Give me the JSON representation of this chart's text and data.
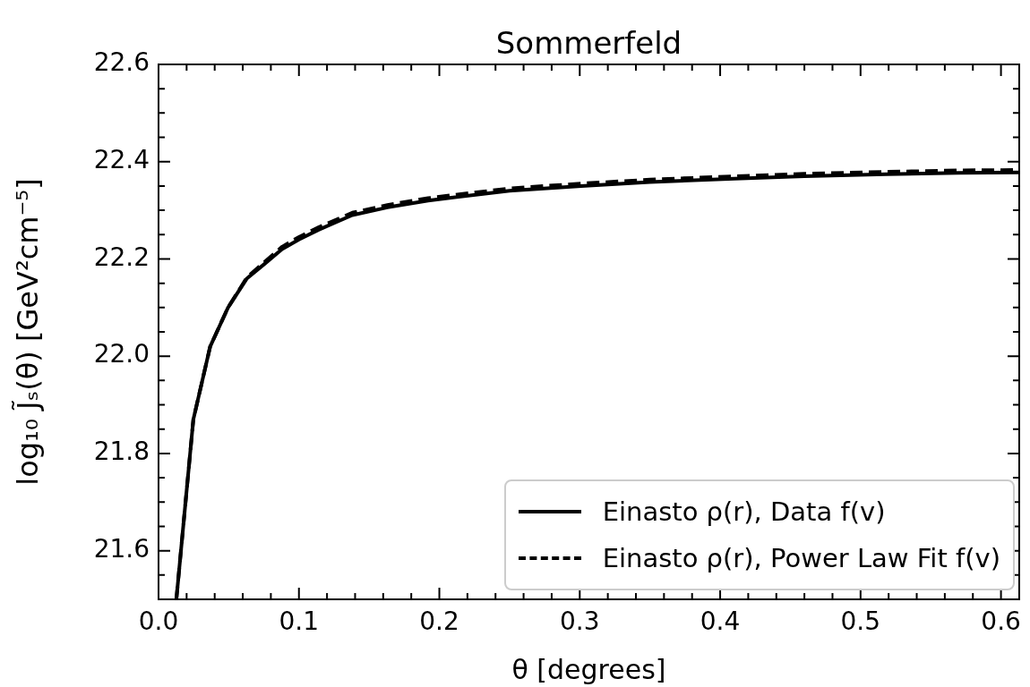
{
  "chart_data": {
    "type": "line",
    "title": "Sommerfeld",
    "xlabel": "θ [degrees]",
    "ylabel": "log₁₀ J̃ₛ(θ) [GeV²cm⁻⁵]",
    "xlim": [
      0,
      0.613
    ],
    "ylim": [
      21.5,
      22.6
    ],
    "xticks": [
      {
        "value": 0,
        "label": "0.0"
      },
      {
        "value": 0.02,
        "label": null
      },
      {
        "value": 0.04,
        "label": null
      },
      {
        "value": 0.06,
        "label": null
      },
      {
        "value": 0.08,
        "label": null
      },
      0.1,
      {
        "value": 0.12,
        "label": null
      },
      {
        "value": 0.14,
        "label": null
      },
      {
        "value": 0.16,
        "label": null
      },
      {
        "value": 0.18,
        "label": null
      },
      0.2,
      {
        "value": 0.22,
        "label": null
      },
      {
        "value": 0.24,
        "label": null
      },
      {
        "value": 0.26,
        "label": null
      },
      {
        "value": 0.28,
        "label": null
      },
      0.3,
      {
        "value": 0.32,
        "label": null
      },
      {
        "value": 0.34,
        "label": null
      },
      {
        "value": 0.36,
        "label": null
      },
      {
        "value": 0.38,
        "label": null
      },
      0.4,
      {
        "value": 0.42,
        "label": null
      },
      {
        "value": 0.44,
        "label": null
      },
      {
        "value": 0.46,
        "label": null
      },
      {
        "value": 0.48,
        "label": null
      },
      0.5,
      {
        "value": 0.52,
        "label": null
      },
      {
        "value": 0.54,
        "label": null
      },
      {
        "value": 0.56,
        "label": null
      },
      {
        "value": 0.58,
        "label": null
      },
      0.6
    ],
    "yticks": [
      {
        "value": 21.55,
        "label": null
      },
      21.6,
      {
        "value": 21.65,
        "label": null
      },
      {
        "value": 21.7,
        "label": null
      },
      {
        "value": 21.75,
        "label": null
      },
      21.8,
      {
        "value": 21.85,
        "label": null
      },
      {
        "value": 21.9,
        "label": null
      },
      {
        "value": 21.95,
        "label": null
      },
      {
        "value": 22.0,
        "label": "22.0"
      },
      {
        "value": 22.05,
        "label": null
      },
      {
        "value": 22.1,
        "label": null
      },
      {
        "value": 22.15,
        "label": null
      },
      22.2,
      {
        "value": 22.25,
        "label": null
      },
      {
        "value": 22.3,
        "label": null
      },
      {
        "value": 22.35,
        "label": null
      },
      22.4,
      {
        "value": 22.45,
        "label": null
      },
      {
        "value": 22.5,
        "label": null
      },
      {
        "value": 22.55,
        "label": null
      },
      22.6
    ],
    "grid": false,
    "legend": "bottom right",
    "series": [
      {
        "name": "Einasto ρ(r), Data f(v)",
        "color": "#000000",
        "line_style": "solid",
        "x": [
          0.0127,
          0.0248,
          0.0368,
          0.0495,
          0.063,
          0.0756,
          0.088,
          0.1,
          0.114,
          0.138,
          0.163,
          0.192,
          0.206,
          0.25,
          0.301,
          0.35,
          0.41,
          0.46,
          0.518,
          0.57,
          0.613
        ],
        "values": [
          21.5,
          21.87,
          22.02,
          22.1,
          22.16,
          22.19,
          22.22,
          22.24,
          22.26,
          22.29,
          22.306,
          22.32,
          22.325,
          22.34,
          22.35,
          22.358,
          22.365,
          22.37,
          22.374,
          22.377,
          22.378
        ]
      },
      {
        "name": "Einasto ρ(r), Power Law Fit f(v)",
        "color": "#000000",
        "line_style": "dashed",
        "x": [
          0.0127,
          0.0248,
          0.0368,
          0.0495,
          0.063,
          0.0756,
          0.088,
          0.1,
          0.114,
          0.138,
          0.163,
          0.192,
          0.206,
          0.25,
          0.301,
          0.35,
          0.41,
          0.46,
          0.518,
          0.57,
          0.613
        ],
        "values": [
          21.5,
          21.87,
          22.02,
          22.1,
          22.162,
          22.194,
          22.225,
          22.245,
          22.265,
          22.295,
          22.311,
          22.325,
          22.33,
          22.345,
          22.355,
          22.363,
          22.37,
          22.375,
          22.379,
          22.382,
          22.383
        ]
      }
    ]
  }
}
